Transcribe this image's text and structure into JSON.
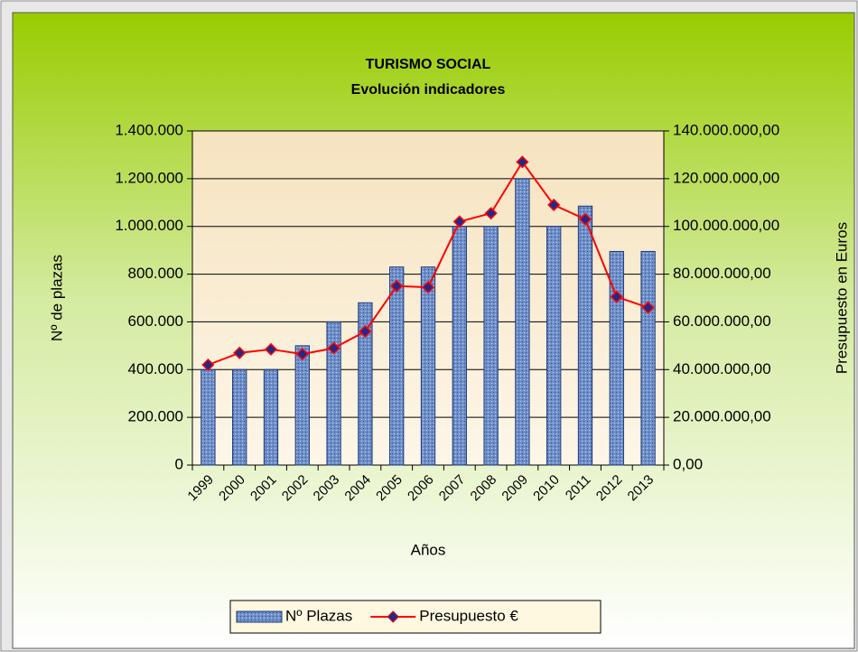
{
  "chart_data": {
    "type": "bar_line",
    "title": "TURISMO SOCIAL",
    "subtitle": "Evolución indicadores",
    "x_label": "Años",
    "y_label": "Nº de plazas",
    "y2_label": "Presupuesto en Euros",
    "categories": [
      "1999",
      "2000",
      "2001",
      "2002",
      "2003",
      "2004",
      "2005",
      "2006",
      "2007",
      "2008",
      "2009",
      "2010",
      "2011",
      "2012",
      "2013"
    ],
    "series": [
      {
        "name": "Nº Plazas",
        "type": "bar",
        "color": "#6f8fc8",
        "values": [
          400000,
          400000,
          400000,
          500000,
          600000,
          680000,
          830000,
          830000,
          1000000,
          1000000,
          1200000,
          1000000,
          1085000,
          895000,
          895000
        ]
      },
      {
        "name": "Presupuesto €",
        "type": "line",
        "axis": "y2",
        "color": "#ff0000",
        "values": [
          42000000,
          47000000,
          48500000,
          46500000,
          49000000,
          56000000,
          75000000,
          74500000,
          102000000,
          105500000,
          127000000,
          109000000,
          103000000,
          70500000,
          66000000
        ]
      }
    ],
    "ylim": [
      0,
      1400000
    ],
    "yticks": [
      0,
      {
        "value": 200000,
        "label": "200.000"
      },
      {
        "value": 400000,
        "label": "400.000"
      },
      {
        "value": 600000,
        "label": "600.000"
      },
      {
        "value": 800000,
        "label": "800.000"
      },
      {
        "value": 1000000,
        "label": "1.000.000"
      },
      {
        "value": 1200000,
        "label": "1.200.000"
      },
      {
        "value": 1400000,
        "label": "1.400.000"
      }
    ],
    "y2lim": [
      0,
      140000000
    ],
    "y2ticks": [
      {
        "value": 0,
        "label": "0,00"
      },
      {
        "value": 20000000,
        "label": "20.000.000,00"
      },
      {
        "value": 40000000,
        "label": "40.000.000,00"
      },
      {
        "value": 60000000,
        "label": "60.000.000,00"
      },
      {
        "value": 80000000,
        "label": "80.000.000,00"
      },
      {
        "value": 100000000,
        "label": "100.000.000,00"
      },
      {
        "value": 120000000,
        "label": "120.000.000,00"
      },
      {
        "value": 140000000,
        "label": "140.000.000,00"
      }
    ],
    "grid": true,
    "legend": "bottom"
  }
}
